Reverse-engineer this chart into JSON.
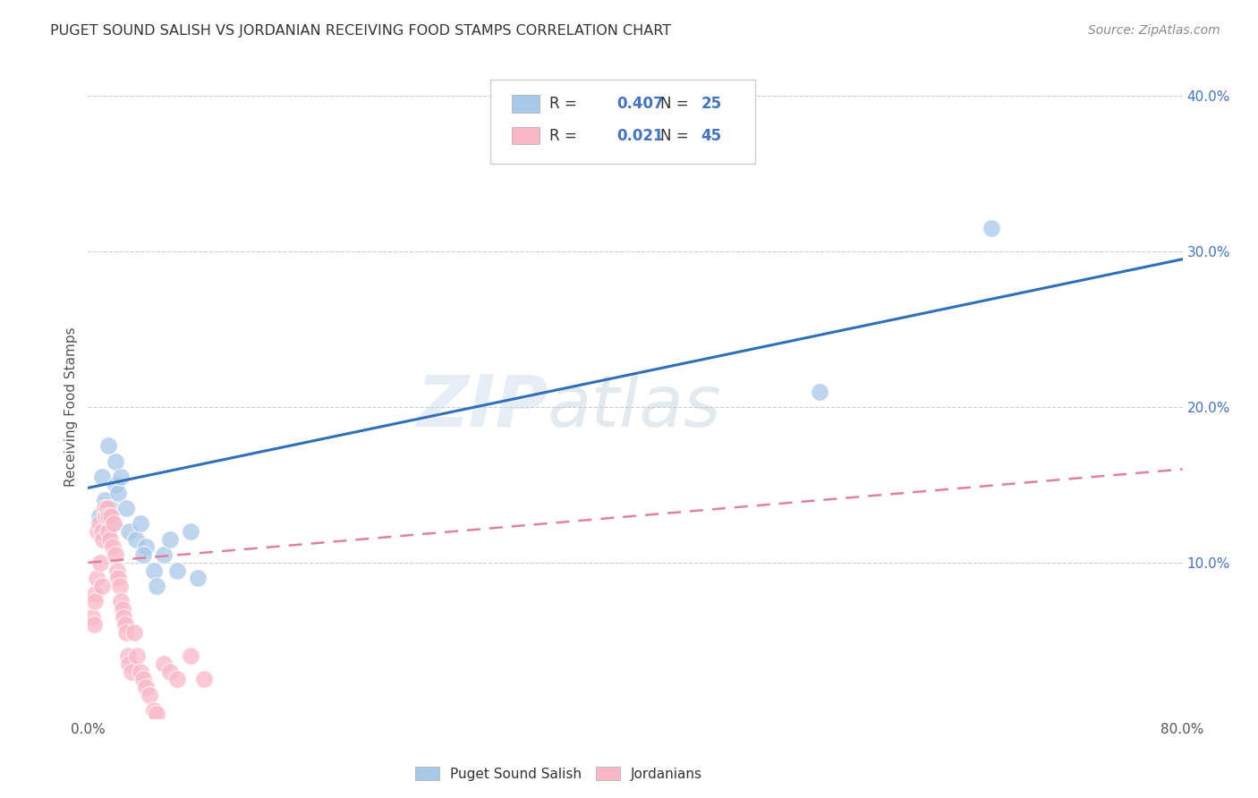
{
  "title": "PUGET SOUND SALISH VS JORDANIAN RECEIVING FOOD STAMPS CORRELATION CHART",
  "source": "Source: ZipAtlas.com",
  "ylabel": "Receiving Food Stamps",
  "xlim": [
    0.0,
    0.8
  ],
  "ylim": [
    0.0,
    0.4
  ],
  "yticks_right": [
    0.1,
    0.2,
    0.3,
    0.4
  ],
  "ytick_labels_right": [
    "10.0%",
    "20.0%",
    "30.0%",
    "40.0%"
  ],
  "legend_r_blue": "0.407",
  "legend_n_blue": "25",
  "legend_r_pink": "0.021",
  "legend_n_pink": "45",
  "blue_color": "#a8c8e8",
  "pink_color": "#f9b8c8",
  "blue_line_color": "#3070b8",
  "pink_line_color": "#e080a0",
  "grid_color": "#cccccc",
  "watermark_zip": "ZIP",
  "watermark_atlas": "atlas",
  "blue_points_x": [
    0.01,
    0.015,
    0.02,
    0.008,
    0.012,
    0.016,
    0.018,
    0.02,
    0.022,
    0.024,
    0.028,
    0.03,
    0.035,
    0.038,
    0.042,
    0.048,
    0.055,
    0.06,
    0.065,
    0.075,
    0.08,
    0.04,
    0.05,
    0.535,
    0.66
  ],
  "blue_points_y": [
    0.155,
    0.175,
    0.165,
    0.13,
    0.14,
    0.135,
    0.125,
    0.15,
    0.145,
    0.155,
    0.135,
    0.12,
    0.115,
    0.125,
    0.11,
    0.095,
    0.105,
    0.115,
    0.095,
    0.12,
    0.09,
    0.105,
    0.085,
    0.21,
    0.315
  ],
  "pink_points_x": [
    0.003,
    0.004,
    0.005,
    0.005,
    0.006,
    0.007,
    0.008,
    0.009,
    0.01,
    0.01,
    0.011,
    0.012,
    0.013,
    0.014,
    0.015,
    0.015,
    0.016,
    0.017,
    0.018,
    0.019,
    0.02,
    0.021,
    0.022,
    0.023,
    0.024,
    0.025,
    0.026,
    0.027,
    0.028,
    0.029,
    0.03,
    0.032,
    0.034,
    0.036,
    0.038,
    0.04,
    0.042,
    0.045,
    0.048,
    0.05,
    0.055,
    0.06,
    0.065,
    0.075,
    0.085
  ],
  "pink_points_y": [
    0.065,
    0.06,
    0.08,
    0.075,
    0.09,
    0.12,
    0.125,
    0.1,
    0.085,
    0.12,
    0.115,
    0.135,
    0.13,
    0.135,
    0.12,
    0.13,
    0.115,
    0.13,
    0.11,
    0.125,
    0.105,
    0.095,
    0.09,
    0.085,
    0.075,
    0.07,
    0.065,
    0.06,
    0.055,
    0.04,
    0.035,
    0.03,
    0.055,
    0.04,
    0.03,
    0.025,
    0.02,
    0.015,
    0.005,
    0.003,
    0.035,
    0.03,
    0.025,
    0.04,
    0.025
  ],
  "blue_trendline_x": [
    0.0,
    0.8
  ],
  "blue_trendline_y": [
    0.148,
    0.295
  ],
  "pink_trendline_x": [
    0.0,
    0.8
  ],
  "pink_trendline_y": [
    0.1,
    0.16
  ],
  "bg_color": "#ffffff"
}
